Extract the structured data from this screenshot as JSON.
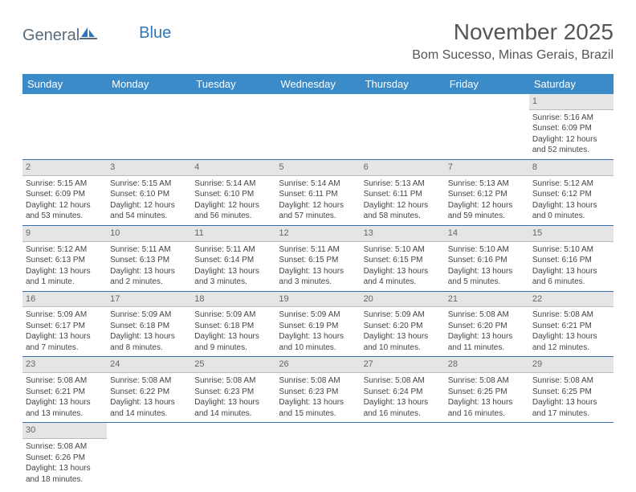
{
  "brand": {
    "text1": "General",
    "text2": "Blue"
  },
  "colors": {
    "header_bg": "#3b8bc8",
    "header_text": "#ffffff",
    "row_border": "#3b6fa8",
    "daynum_bg": "#e5e5e5",
    "daynum_text": "#666666",
    "body_text": "#444444",
    "logo_text": "#5a6b7a",
    "logo_accent": "#2f77b8"
  },
  "title": "November 2025",
  "location": "Bom Sucesso, Minas Gerais, Brazil",
  "weekdays": [
    "Sunday",
    "Monday",
    "Tuesday",
    "Wednesday",
    "Thursday",
    "Friday",
    "Saturday"
  ],
  "days": [
    null,
    null,
    null,
    null,
    null,
    null,
    {
      "n": "1",
      "sunrise": "5:16 AM",
      "sunset": "6:09 PM",
      "daylight": "12 hours and 52 minutes."
    },
    {
      "n": "2",
      "sunrise": "5:15 AM",
      "sunset": "6:09 PM",
      "daylight": "12 hours and 53 minutes."
    },
    {
      "n": "3",
      "sunrise": "5:15 AM",
      "sunset": "6:10 PM",
      "daylight": "12 hours and 54 minutes."
    },
    {
      "n": "4",
      "sunrise": "5:14 AM",
      "sunset": "6:10 PM",
      "daylight": "12 hours and 56 minutes."
    },
    {
      "n": "5",
      "sunrise": "5:14 AM",
      "sunset": "6:11 PM",
      "daylight": "12 hours and 57 minutes."
    },
    {
      "n": "6",
      "sunrise": "5:13 AM",
      "sunset": "6:11 PM",
      "daylight": "12 hours and 58 minutes."
    },
    {
      "n": "7",
      "sunrise": "5:13 AM",
      "sunset": "6:12 PM",
      "daylight": "12 hours and 59 minutes."
    },
    {
      "n": "8",
      "sunrise": "5:12 AM",
      "sunset": "6:12 PM",
      "daylight": "13 hours and 0 minutes."
    },
    {
      "n": "9",
      "sunrise": "5:12 AM",
      "sunset": "6:13 PM",
      "daylight": "13 hours and 1 minute."
    },
    {
      "n": "10",
      "sunrise": "5:11 AM",
      "sunset": "6:13 PM",
      "daylight": "13 hours and 2 minutes."
    },
    {
      "n": "11",
      "sunrise": "5:11 AM",
      "sunset": "6:14 PM",
      "daylight": "13 hours and 3 minutes."
    },
    {
      "n": "12",
      "sunrise": "5:11 AM",
      "sunset": "6:15 PM",
      "daylight": "13 hours and 3 minutes."
    },
    {
      "n": "13",
      "sunrise": "5:10 AM",
      "sunset": "6:15 PM",
      "daylight": "13 hours and 4 minutes."
    },
    {
      "n": "14",
      "sunrise": "5:10 AM",
      "sunset": "6:16 PM",
      "daylight": "13 hours and 5 minutes."
    },
    {
      "n": "15",
      "sunrise": "5:10 AM",
      "sunset": "6:16 PM",
      "daylight": "13 hours and 6 minutes."
    },
    {
      "n": "16",
      "sunrise": "5:09 AM",
      "sunset": "6:17 PM",
      "daylight": "13 hours and 7 minutes."
    },
    {
      "n": "17",
      "sunrise": "5:09 AM",
      "sunset": "6:18 PM",
      "daylight": "13 hours and 8 minutes."
    },
    {
      "n": "18",
      "sunrise": "5:09 AM",
      "sunset": "6:18 PM",
      "daylight": "13 hours and 9 minutes."
    },
    {
      "n": "19",
      "sunrise": "5:09 AM",
      "sunset": "6:19 PM",
      "daylight": "13 hours and 10 minutes."
    },
    {
      "n": "20",
      "sunrise": "5:09 AM",
      "sunset": "6:20 PM",
      "daylight": "13 hours and 10 minutes."
    },
    {
      "n": "21",
      "sunrise": "5:08 AM",
      "sunset": "6:20 PM",
      "daylight": "13 hours and 11 minutes."
    },
    {
      "n": "22",
      "sunrise": "5:08 AM",
      "sunset": "6:21 PM",
      "daylight": "13 hours and 12 minutes."
    },
    {
      "n": "23",
      "sunrise": "5:08 AM",
      "sunset": "6:21 PM",
      "daylight": "13 hours and 13 minutes."
    },
    {
      "n": "24",
      "sunrise": "5:08 AM",
      "sunset": "6:22 PM",
      "daylight": "13 hours and 14 minutes."
    },
    {
      "n": "25",
      "sunrise": "5:08 AM",
      "sunset": "6:23 PM",
      "daylight": "13 hours and 14 minutes."
    },
    {
      "n": "26",
      "sunrise": "5:08 AM",
      "sunset": "6:23 PM",
      "daylight": "13 hours and 15 minutes."
    },
    {
      "n": "27",
      "sunrise": "5:08 AM",
      "sunset": "6:24 PM",
      "daylight": "13 hours and 16 minutes."
    },
    {
      "n": "28",
      "sunrise": "5:08 AM",
      "sunset": "6:25 PM",
      "daylight": "13 hours and 16 minutes."
    },
    {
      "n": "29",
      "sunrise": "5:08 AM",
      "sunset": "6:25 PM",
      "daylight": "13 hours and 17 minutes."
    },
    {
      "n": "30",
      "sunrise": "5:08 AM",
      "sunset": "6:26 PM",
      "daylight": "13 hours and 18 minutes."
    },
    null,
    null,
    null,
    null,
    null,
    null
  ],
  "labels": {
    "sunrise": "Sunrise: ",
    "sunset": "Sunset: ",
    "daylight": "Daylight: "
  }
}
